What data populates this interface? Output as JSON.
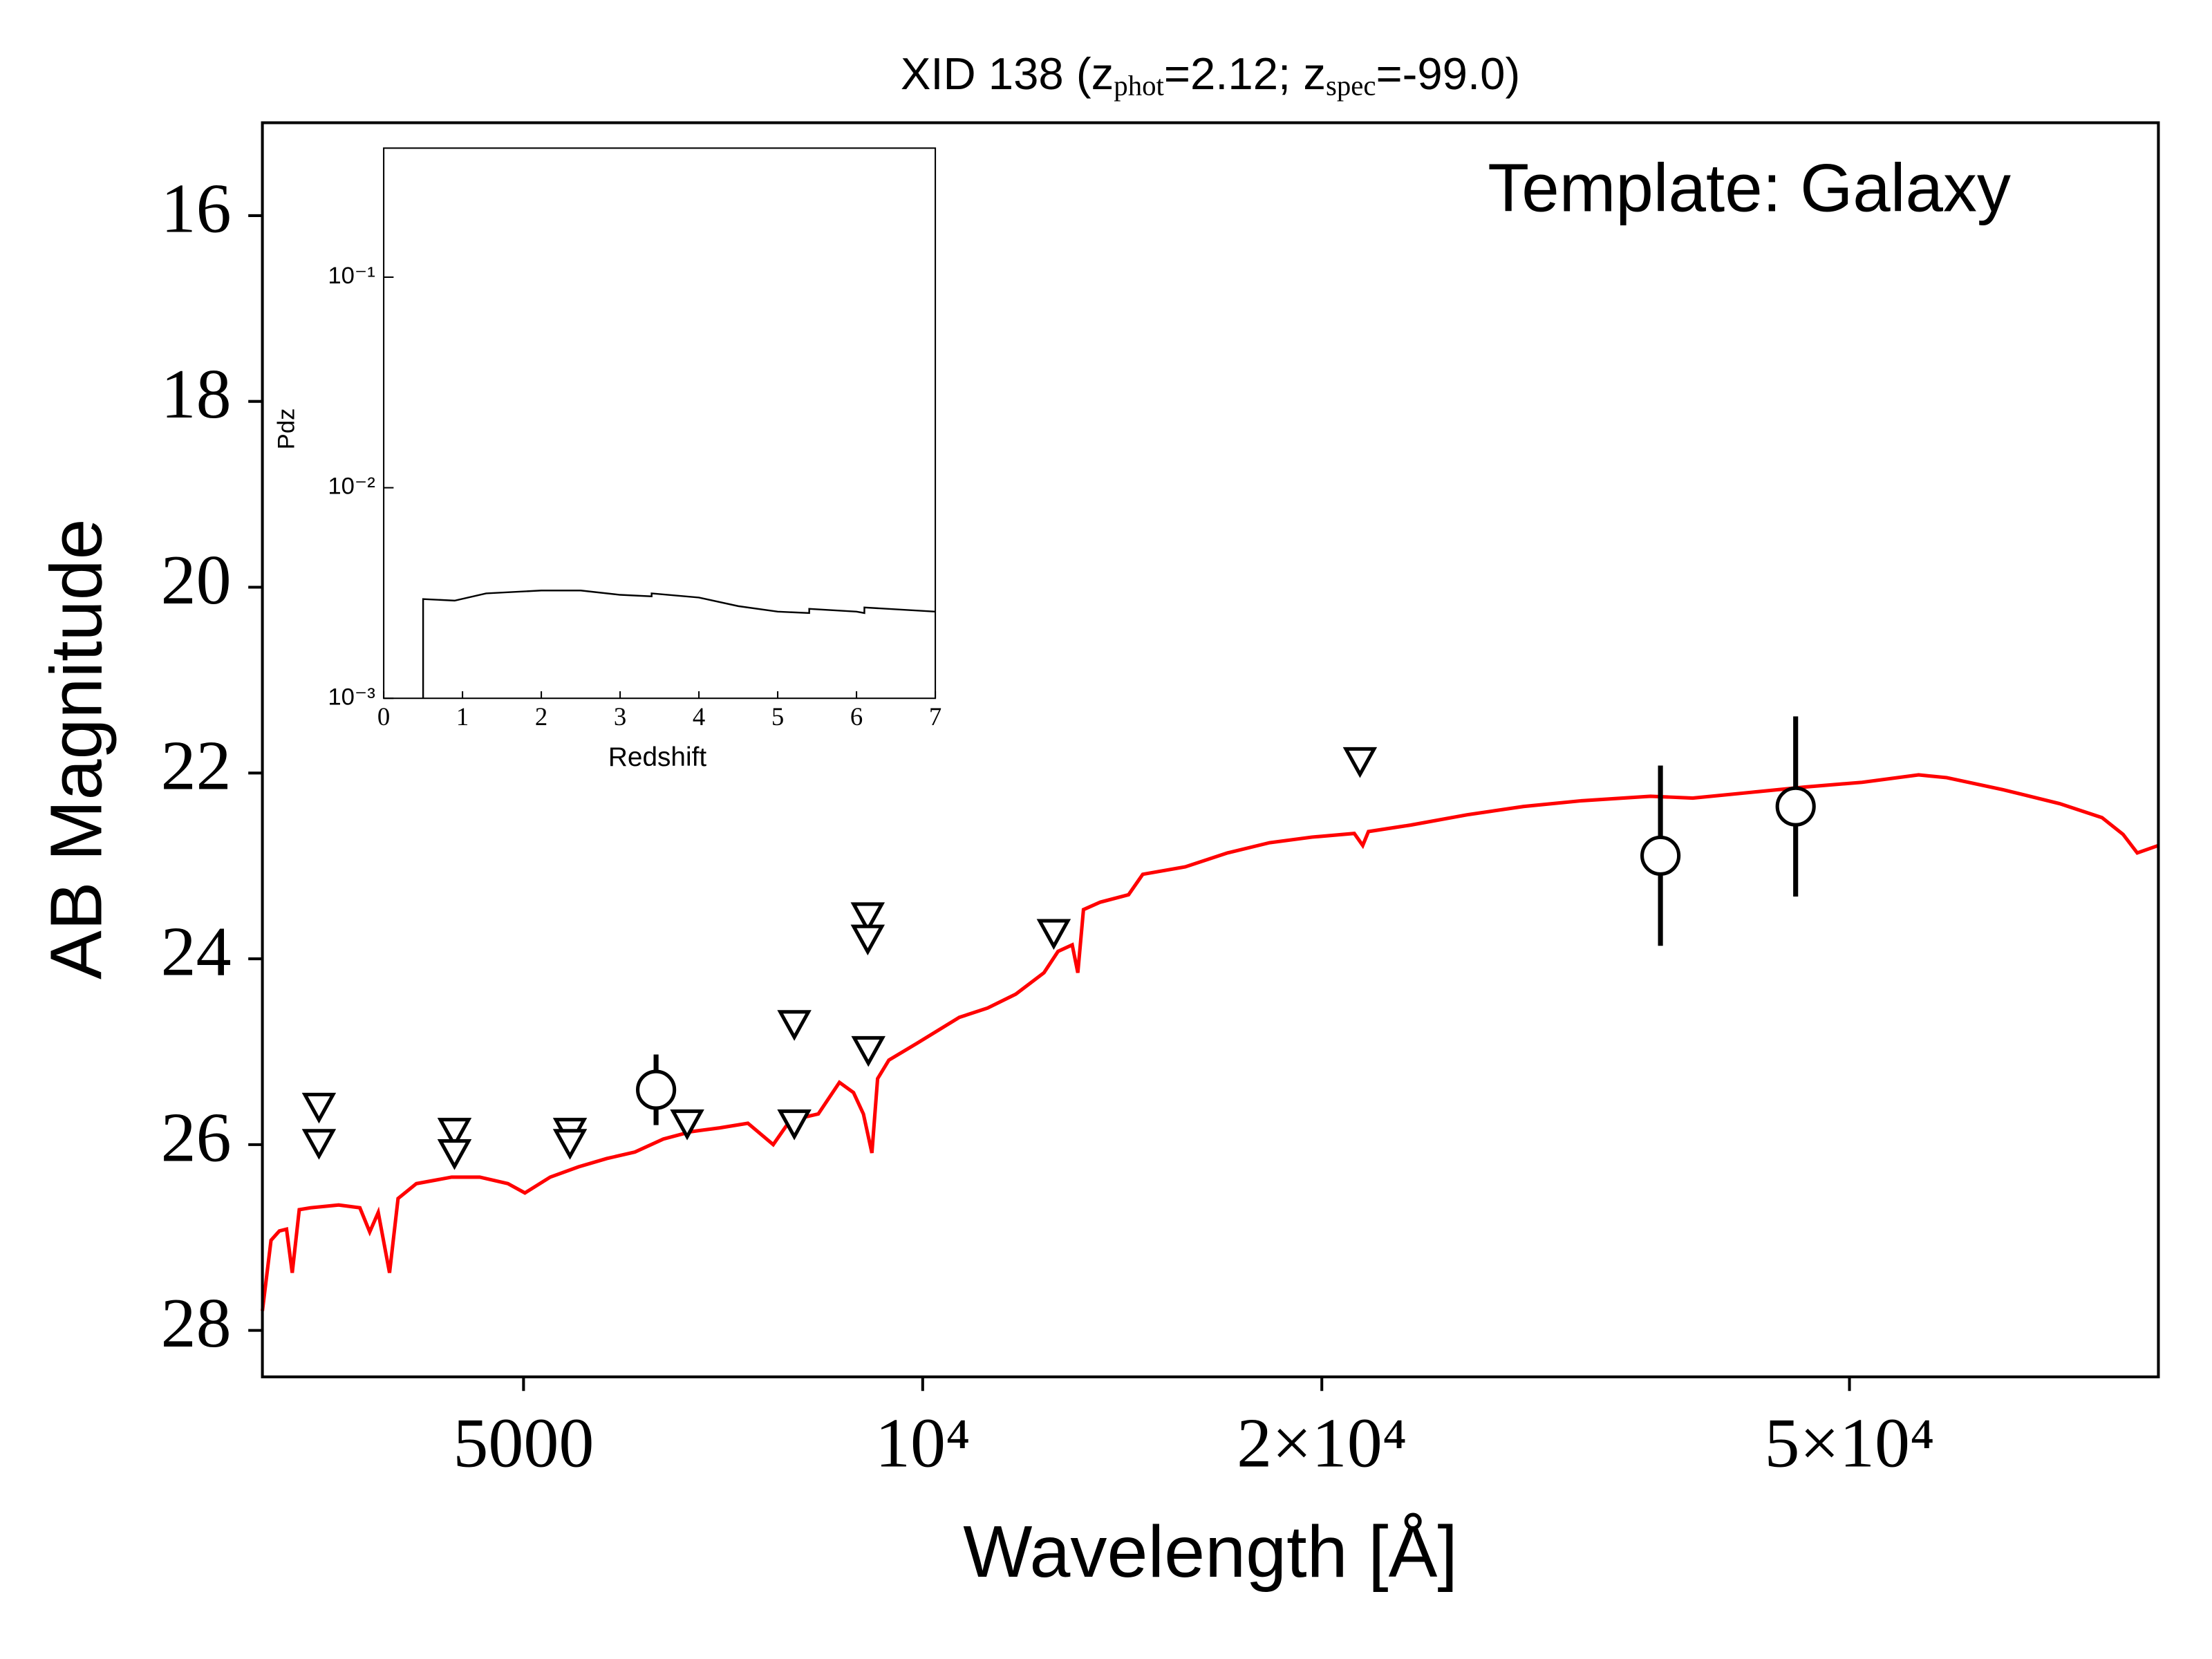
{
  "chart_data": {
    "type": "line",
    "title": [
      "XID 138 (z",
      "phot",
      "=2.12; z",
      "spec",
      "=-99.0)"
    ],
    "annotation": "Template: Galaxy",
    "xlabel": "Wavelength [Å]",
    "ylabel": "AB Magnitude",
    "xscale": "log",
    "xlim": [
      3177,
      85500
    ],
    "ylim": [
      28.5,
      15.0
    ],
    "xticks": [
      5000,
      {
        "value": 10000,
        "label": "10⁴"
      },
      {
        "value": 20000,
        "label": "2×10⁴"
      },
      {
        "value": 50000,
        "label": "5×10⁴"
      }
    ],
    "yticks": [
      16,
      18,
      20,
      22,
      24,
      26,
      28
    ],
    "template": {
      "color": "#ff0000",
      "x": [
        3177,
        3225,
        3272,
        3313,
        3346,
        3387,
        3454,
        3627,
        3763,
        3828,
        3885,
        3962,
        4021,
        4151,
        4413,
        4634,
        4866,
        5012,
        5237,
        5500,
        5777,
        6067,
        6374,
        6692,
        7028,
        7382,
        7714,
        7943,
        8342,
        8654,
        8868,
        9022,
        9156,
        9247,
        9430,
        9901,
        10658,
        11193,
        11755,
        12344,
        12650,
        12965,
        13092,
        13221,
        13614,
        14298,
        14655,
        15777,
        16980,
        18268,
        19662,
        21159,
        21473,
        21687,
        23340,
        25735,
        28391,
        31310,
        35391,
        38086,
        42013,
        46345,
        51106,
        56377,
        59200,
        65300,
        72030,
        77520,
        80410,
        82420,
        85500
      ],
      "y": [
        27.79,
        27.03,
        26.93,
        26.91,
        27.38,
        26.7,
        26.68,
        26.65,
        26.68,
        26.94,
        26.73,
        27.38,
        26.58,
        26.42,
        26.35,
        26.35,
        26.42,
        26.52,
        26.35,
        26.24,
        26.15,
        26.08,
        25.94,
        25.86,
        25.82,
        25.77,
        26.0,
        25.74,
        25.67,
        25.33,
        25.44,
        25.67,
        26.09,
        25.29,
        25.09,
        24.91,
        24.63,
        24.53,
        24.38,
        24.15,
        23.92,
        23.85,
        24.15,
        23.47,
        23.39,
        23.31,
        23.09,
        23.01,
        22.86,
        22.75,
        22.69,
        22.65,
        22.78,
        22.63,
        22.56,
        22.45,
        22.36,
        22.3,
        22.25,
        22.27,
        22.21,
        22.15,
        22.1,
        22.02,
        22.05,
        22.18,
        22.33,
        22.48,
        22.66,
        22.86,
        22.78
      ]
    },
    "upper_limits": {
      "color": "#000000",
      "x": [
        3505,
        3505,
        4435,
        4435,
        5420,
        5420,
        6643,
        8002,
        8002,
        9090,
        9090,
        9100,
        12556,
        21370
      ],
      "y": [
        25.59,
        25.98,
        25.86,
        26.09,
        25.86,
        25.98,
        25.77,
        24.7,
        25.77,
        23.54,
        23.78,
        24.98,
        23.72,
        21.87
      ]
    },
    "detections": {
      "color": "#000000",
      "x": [
        6294,
        36010,
        45540
      ],
      "y": [
        25.41,
        22.89,
        22.36
      ],
      "err": [
        0.38,
        0.97,
        0.97
      ]
    },
    "inset": {
      "type": "line",
      "xlabel": "Redshift",
      "ylabel": "Pdz",
      "yscale": "log",
      "xlim": [
        0,
        7
      ],
      "ylim": [
        0.001,
        0.41
      ],
      "xticks": [
        0,
        1,
        2,
        3,
        4,
        5,
        6,
        7
      ],
      "yticks": [
        {
          "value": 0.001,
          "label": "10⁻³"
        },
        {
          "value": 0.01,
          "label": "10⁻²"
        },
        {
          "value": 0.1,
          "label": "10⁻¹"
        }
      ],
      "color": "#000000",
      "x": [
        0.5,
        0.5,
        0.9,
        1.3,
        2,
        2.5,
        3,
        3.4,
        3.4,
        4,
        4.5,
        5,
        5.4,
        5.4,
        6,
        6.1,
        6.1,
        7
      ],
      "y": [
        0.001,
        0.00296,
        0.00291,
        0.00315,
        0.00325,
        0.00325,
        0.0031,
        0.00305,
        0.00315,
        0.00301,
        0.00274,
        0.00258,
        0.00254,
        0.00266,
        0.00258,
        0.00254,
        0.0027,
        0.00258
      ]
    }
  }
}
